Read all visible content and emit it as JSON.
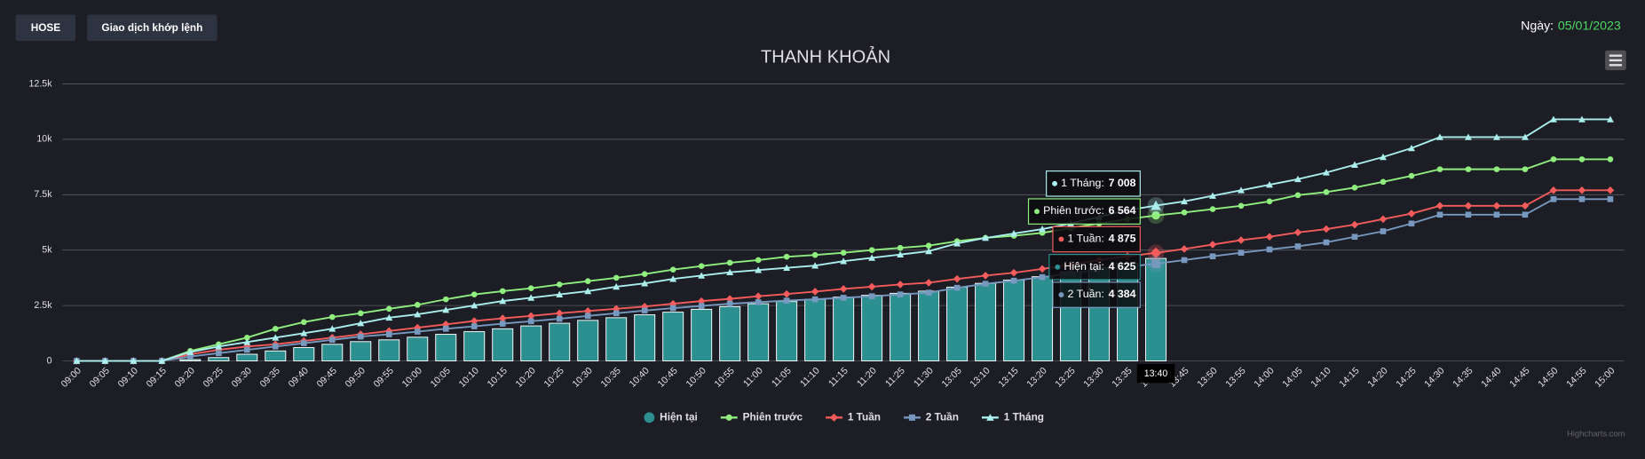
{
  "header": {
    "buttons": [
      "HOSE",
      "Giao dịch khớp lệnh"
    ],
    "date_label": "Ngày:",
    "date": "05/01/2023"
  },
  "chart_data": {
    "type": "line",
    "title": "THANH KHOẢN",
    "categories": [
      "09:00",
      "09:05",
      "09:10",
      "09:15",
      "09:20",
      "09:25",
      "09:30",
      "09:35",
      "09:40",
      "09:45",
      "09:50",
      "09:55",
      "10:00",
      "10:05",
      "10:10",
      "10:15",
      "10:20",
      "10:25",
      "10:30",
      "10:35",
      "10:40",
      "10:45",
      "10:50",
      "10:55",
      "11:00",
      "11:05",
      "11:10",
      "11:15",
      "11:20",
      "11:25",
      "11:30",
      "13:05",
      "13:10",
      "13:15",
      "13:20",
      "13:25",
      "13:30",
      "13:35",
      "13:40",
      "13:45",
      "13:50",
      "13:55",
      "14:00",
      "14:05",
      "14:10",
      "14:15",
      "14:20",
      "14:25",
      "14:30",
      "14:35",
      "14:40",
      "14:45",
      "14:50",
      "14:55",
      "15:00"
    ],
    "series": [
      {
        "name": "Hiện tại",
        "type": "column",
        "color": "#2b908f",
        "marker": "circle",
        "values": [
          0,
          0,
          0,
          0,
          60,
          150,
          300,
          450,
          600,
          750,
          870,
          950,
          1070,
          1200,
          1320,
          1450,
          1580,
          1700,
          1830,
          1950,
          2080,
          2200,
          2330,
          2450,
          2580,
          2680,
          2780,
          2880,
          2960,
          3050,
          3150,
          3330,
          3500,
          3650,
          3800,
          4000,
          4200,
          4400,
          4625,
          null,
          null,
          null,
          null,
          null,
          null,
          null,
          null,
          null,
          null,
          null,
          null,
          null,
          null,
          null,
          null
        ]
      },
      {
        "name": "Phiên trước",
        "type": "line",
        "color": "#90ee7e",
        "marker": "circle",
        "values": [
          0,
          0,
          0,
          0,
          450,
          750,
          1050,
          1450,
          1750,
          1980,
          2150,
          2350,
          2530,
          2780,
          3000,
          3150,
          3280,
          3450,
          3600,
          3750,
          3920,
          4120,
          4280,
          4430,
          4550,
          4700,
          4780,
          4880,
          5000,
          5100,
          5200,
          5400,
          5550,
          5650,
          5780,
          6000,
          6200,
          6400,
          6564,
          6700,
          6850,
          7000,
          7200,
          7480,
          7620,
          7820,
          8080,
          8350,
          8650,
          8650,
          8650,
          8650,
          9100,
          9100,
          9100
        ]
      },
      {
        "name": "1 Tuần",
        "type": "line",
        "color": "#f45b5b",
        "marker": "diamond",
        "values": [
          0,
          0,
          0,
          0,
          300,
          500,
          650,
          750,
          900,
          1050,
          1200,
          1350,
          1500,
          1650,
          1800,
          1920,
          2030,
          2150,
          2250,
          2350,
          2450,
          2580,
          2700,
          2800,
          2920,
          3020,
          3130,
          3250,
          3350,
          3450,
          3530,
          3700,
          3850,
          3980,
          4150,
          4350,
          4550,
          4720,
          4875,
          5050,
          5250,
          5450,
          5600,
          5800,
          5950,
          6150,
          6400,
          6650,
          7000,
          7000,
          7000,
          7000,
          7700,
          7700,
          7700
        ]
      },
      {
        "name": "2 Tuần",
        "type": "line",
        "color": "#7798bf",
        "marker": "square",
        "values": [
          0,
          0,
          0,
          0,
          200,
          350,
          500,
          650,
          800,
          950,
          1100,
          1200,
          1320,
          1450,
          1560,
          1680,
          1790,
          1900,
          2030,
          2150,
          2270,
          2380,
          2480,
          2580,
          2650,
          2720,
          2780,
          2850,
          2920,
          3000,
          3080,
          3300,
          3480,
          3620,
          3780,
          3950,
          4120,
          4250,
          4384,
          4550,
          4720,
          4880,
          5030,
          5170,
          5350,
          5600,
          5850,
          6200,
          6600,
          6600,
          6600,
          6600,
          7300,
          7300,
          7300
        ]
      },
      {
        "name": "1 Tháng",
        "type": "line",
        "color": "#aaeeee",
        "marker": "triangle",
        "values": [
          0,
          0,
          0,
          0,
          400,
          650,
          850,
          1050,
          1250,
          1450,
          1700,
          1950,
          2100,
          2300,
          2500,
          2700,
          2850,
          3000,
          3150,
          3350,
          3500,
          3700,
          3850,
          4000,
          4100,
          4200,
          4300,
          4500,
          4650,
          4800,
          4950,
          5300,
          5550,
          5750,
          5950,
          6200,
          6500,
          6800,
          7008,
          7200,
          7450,
          7700,
          7950,
          8200,
          8500,
          8850,
          9200,
          9600,
          10100,
          10100,
          10100,
          10100,
          10900,
          10900,
          10900
        ]
      }
    ],
    "ylim": [
      0,
      12500
    ],
    "yticks": [
      0,
      {
        "value": 2500,
        "label": "2.5k"
      },
      {
        "value": 5000,
        "label": "5k"
      },
      {
        "value": 7500,
        "label": "7.5k"
      },
      {
        "value": 10000,
        "label": "10k"
      },
      {
        "value": 12500,
        "label": "12.5k"
      }
    ],
    "grid": true,
    "legend": "bottom",
    "tooltip": {
      "items": [
        {
          "label": "Hiện tại:",
          "value": "4 625"
        },
        {
          "label": "Phiên trước:",
          "value": "6 564"
        },
        {
          "label": "1 Tuần:",
          "value": "4 875"
        },
        {
          "label": "2 Tuần:",
          "value": "4 384"
        },
        {
          "label": "1 Tháng:",
          "value": "7 008"
        }
      ]
    },
    "credits": "Highcharts.com"
  }
}
